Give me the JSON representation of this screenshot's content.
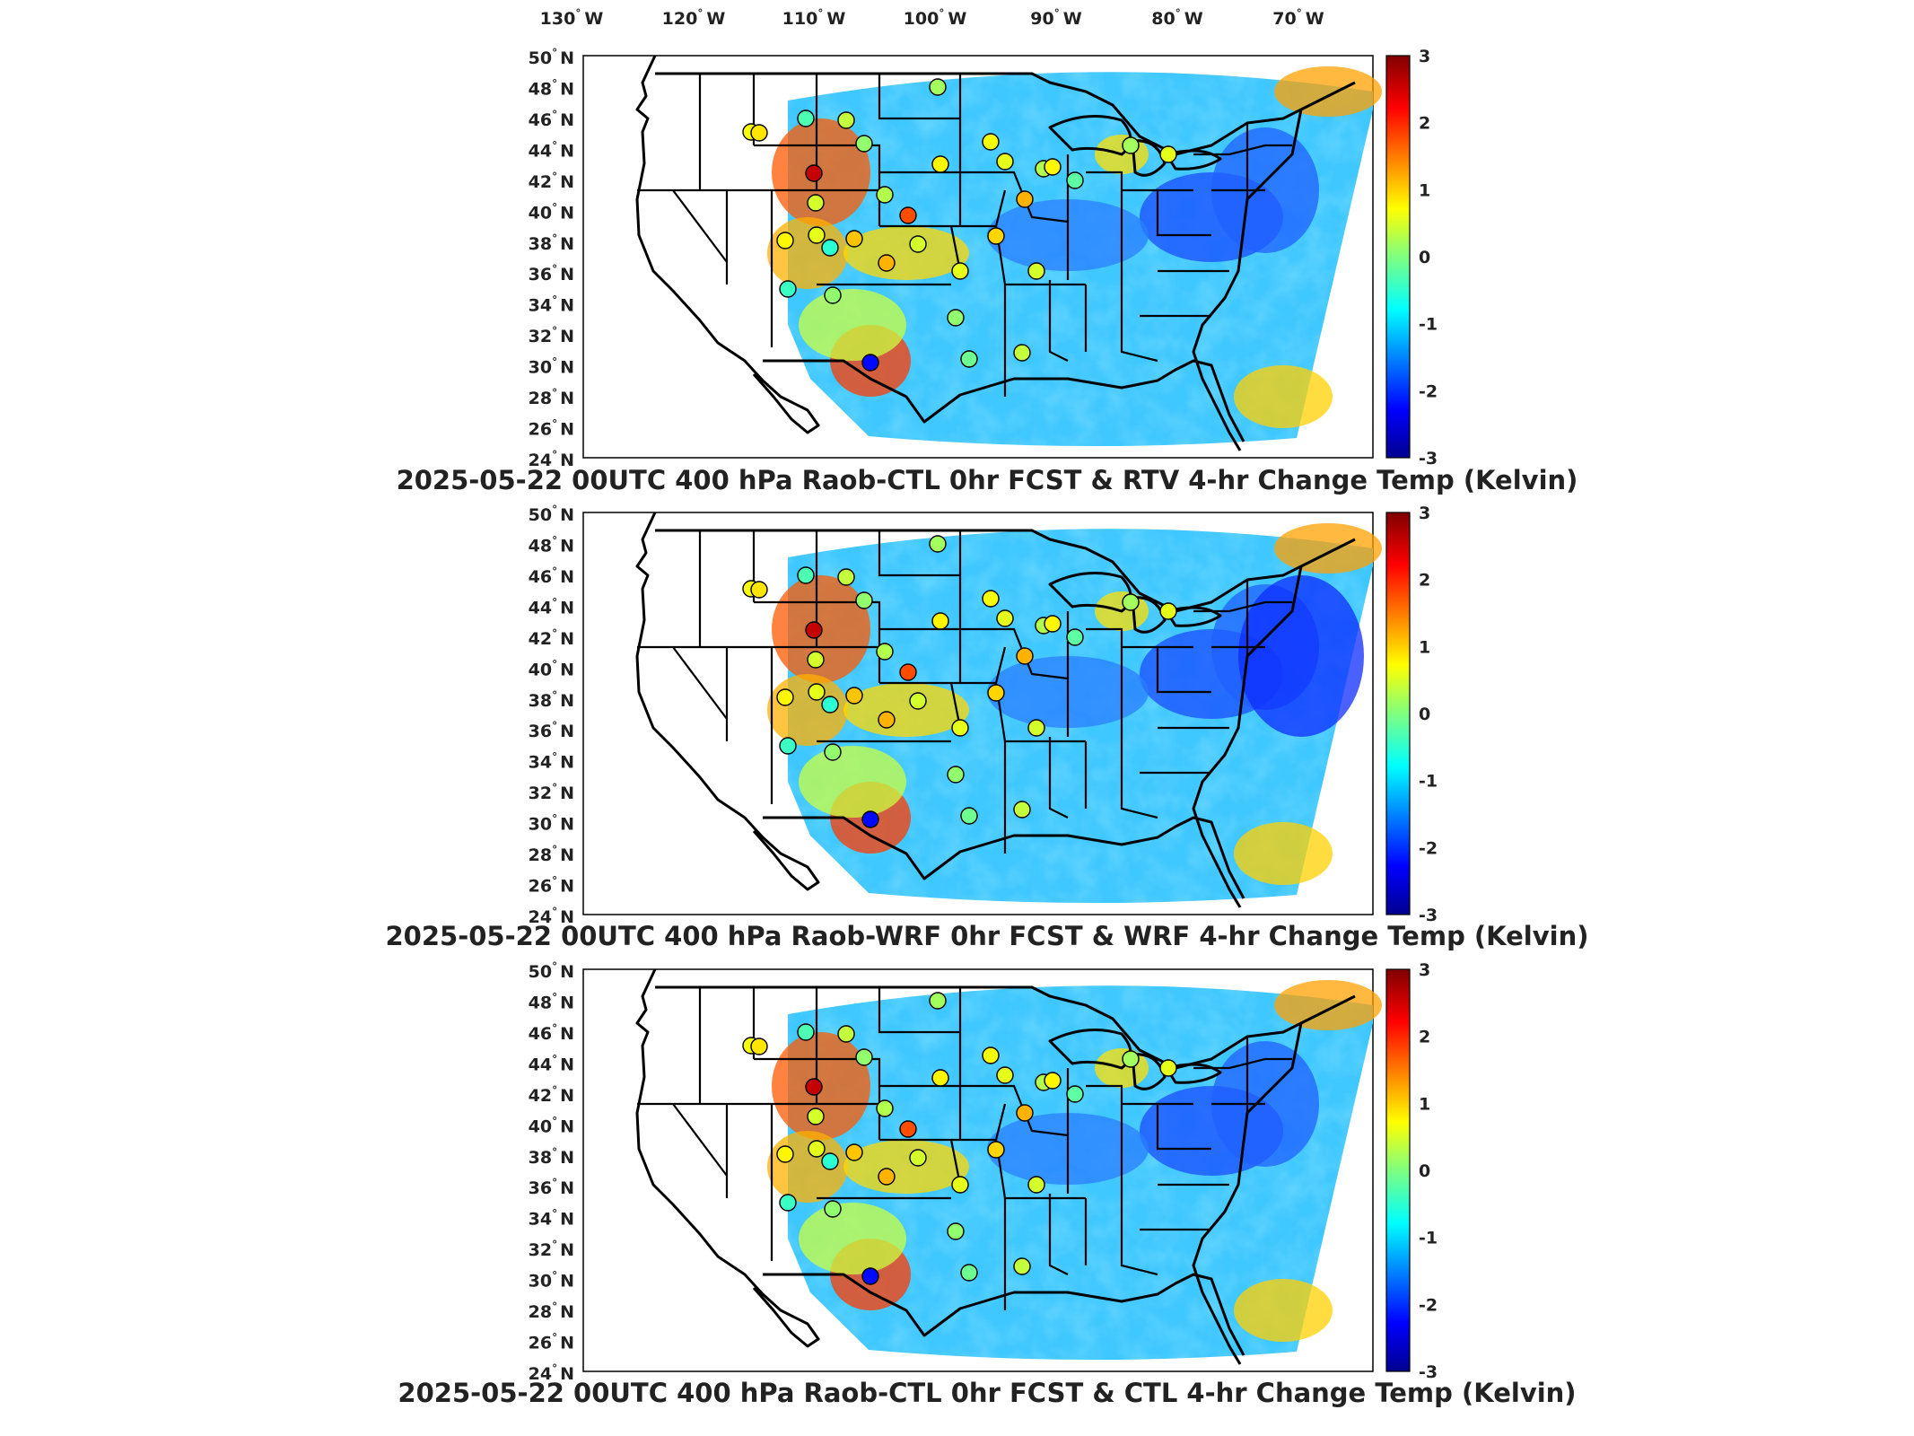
{
  "figure": {
    "lon_labels": [
      "130",
      "120",
      "110",
      "100",
      "90",
      "80",
      "70"
    ],
    "lon_suffix": "W",
    "lat_labels": [
      "50",
      "48",
      "46",
      "44",
      "42",
      "40",
      "38",
      "36",
      "34",
      "32",
      "30",
      "28",
      "26",
      "24"
    ],
    "lat_suffix": "N",
    "degree_symbol": "°",
    "colorbar": {
      "ticks": [
        "3",
        "2",
        "1",
        "0",
        "-1",
        "-2",
        "-3"
      ],
      "range": [
        -3,
        3
      ],
      "colormap": "jet",
      "colors": [
        "#00008f",
        "#0000ff",
        "#00ffff",
        "#ffff00",
        "#ff0000",
        "#800000"
      ]
    },
    "panels": [
      {
        "title": "2025-05-22 00UTC 400 hPa Raob-CTL 0hr FCST & RTV 4-hr Change Temp (Kelvin)",
        "field": "RTV",
        "station_values": [
          2.6,
          0.7,
          0.2,
          0.4,
          0.1,
          -0.3,
          0.9,
          0.8,
          1.1,
          -0.2,
          0.6,
          1.2,
          1.8,
          0.3,
          0.5,
          0.6,
          0.8,
          -0.4,
          -0.5,
          0.1,
          1.2,
          0.5,
          0.6,
          1.0,
          0.7,
          0.3,
          0.8,
          -2.2,
          0.1,
          0.4,
          -0.1,
          0.5,
          0.2,
          0.6
        ]
      },
      {
        "title": "2025-05-22 00UTC 400 hPa Raob-WRF 0hr FCST & WRF 4-hr Change Temp (Kelvin)",
        "field": "WRF",
        "station_values": [
          2.6,
          0.7,
          0.2,
          0.4,
          0.1,
          -0.3,
          0.9,
          0.8,
          1.1,
          -0.2,
          0.6,
          1.2,
          1.8,
          0.3,
          0.5,
          0.6,
          0.8,
          -0.4,
          -0.5,
          0.1,
          1.2,
          0.5,
          0.6,
          1.0,
          0.7,
          0.3,
          0.8,
          -2.2,
          0.1,
          0.4,
          -0.1,
          0.5,
          0.2,
          0.6
        ]
      },
      {
        "title": "2025-05-22 00UTC 400 hPa Raob-CTL 0hr FCST & CTL 4-hr Change Temp (Kelvin)",
        "field": "CTL",
        "station_values": [
          2.6,
          0.7,
          0.2,
          0.4,
          0.1,
          -0.3,
          0.9,
          0.8,
          1.1,
          -0.2,
          0.6,
          1.2,
          1.8,
          0.3,
          0.5,
          0.6,
          0.8,
          -0.4,
          -0.5,
          0.1,
          1.2,
          0.5,
          0.6,
          1.0,
          0.7,
          0.3,
          0.8,
          -2.2,
          0.1,
          0.4,
          -0.1,
          0.5,
          0.2,
          0.6
        ]
      }
    ]
  }
}
